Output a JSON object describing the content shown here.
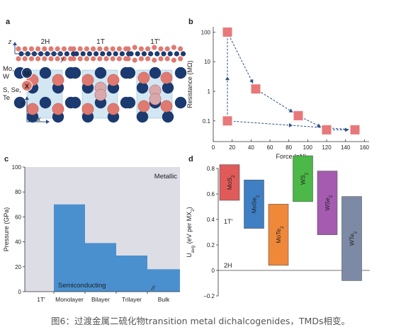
{
  "panel_a": {
    "label": "a",
    "phases": [
      "2H",
      "1T",
      "1T′"
    ],
    "axis_labels": {
      "z": "z",
      "y": "y",
      "x": "x"
    },
    "atom_labels": {
      "metal": "M",
      "chalcogen": "X"
    },
    "legend_metal": [
      "Mo,",
      "W"
    ],
    "legend_chalcogen": [
      "S, Se,",
      "Te"
    ],
    "colors": {
      "metal": "#1b3a70",
      "chalcogen": "#e07a70",
      "cell": "#cfe5f2"
    }
  },
  "panel_b": {
    "label": "b",
    "colors": {
      "marker": "#e8787a",
      "arrow": "#2d4f86"
    }
  },
  "panel_c": {
    "label": "c",
    "metallic_label": "Metallic",
    "semiconducting_label": "Semiconducting",
    "break_mark": "//",
    "colors": {
      "background": "#dcdde5",
      "fill": "#4a90cf"
    }
  },
  "panel_d": {
    "label": "d",
    "label_1t": "1T",
    "label_1tprime": "1T′",
    "label_2h": "2H"
  },
  "caption": "图6：过渡金属二硫化物transition metal dichalcogenides，TMDs相变。",
  "chart_data": [
    {
      "type": "scatter",
      "panel": "b",
      "xlabel": "Force (nN)",
      "ylabel": "Resistance (MΩ)",
      "yscale": "log",
      "xlim": [
        0,
        165
      ],
      "ylim": [
        0.02,
        150
      ],
      "xticks": [
        0,
        20,
        40,
        60,
        80,
        100,
        120,
        140,
        160
      ],
      "yticks": [
        0.1,
        1,
        10,
        100
      ],
      "ytick_labels": [
        "0.1",
        "1",
        "10",
        "100"
      ],
      "points": [
        {
          "x": 15,
          "y": 100
        },
        {
          "x": 45,
          "y": 1.2
        },
        {
          "x": 90,
          "y": 0.15
        },
        {
          "x": 120,
          "y": 0.05
        },
        {
          "x": 150,
          "y": 0.05
        },
        {
          "x": 15,
          "y": 0.1
        }
      ],
      "path_order": [
        0,
        1,
        2,
        3,
        4,
        5,
        0
      ]
    },
    {
      "type": "area",
      "panel": "c",
      "ylabel": "Pressure (GPa)",
      "ylim": [
        0,
        100
      ],
      "yticks": [
        0,
        20,
        40,
        60,
        80,
        100
      ],
      "categories": [
        "1T′",
        "Monolayer",
        "Bilayer",
        "Trilayer",
        "Bulk"
      ],
      "values": [
        0,
        70,
        39,
        29,
        18
      ]
    },
    {
      "type": "bar",
      "panel": "d",
      "ylabel": "U_{avg} (eV per MX_2)",
      "ylim": [
        -0.2,
        0.8
      ],
      "yticks": [
        -0.2,
        0,
        0.2,
        0.4,
        0.6,
        0.8
      ],
      "ytick_labels": [
        "−0.2",
        "0",
        "0.2",
        "0.4",
        "0.6",
        "0.8"
      ],
      "bars": [
        {
          "name": "MoS2",
          "low": 0.55,
          "high": 0.83,
          "color": "#e05a5a"
        },
        {
          "name": "MoSe2",
          "low": 0.33,
          "high": 0.71,
          "color": "#3f7fc4"
        },
        {
          "name": "MoTe2",
          "low": 0.04,
          "high": 0.52,
          "color": "#f0883a"
        },
        {
          "name": "WS2",
          "low": 0.54,
          "high": 0.9,
          "color": "#4cb848"
        },
        {
          "name": "WSe2",
          "low": 0.28,
          "high": 0.78,
          "color": "#a45bb0"
        },
        {
          "name": "WTe2",
          "low": -0.08,
          "high": 0.58,
          "color": "#7d8aa6"
        }
      ]
    }
  ]
}
